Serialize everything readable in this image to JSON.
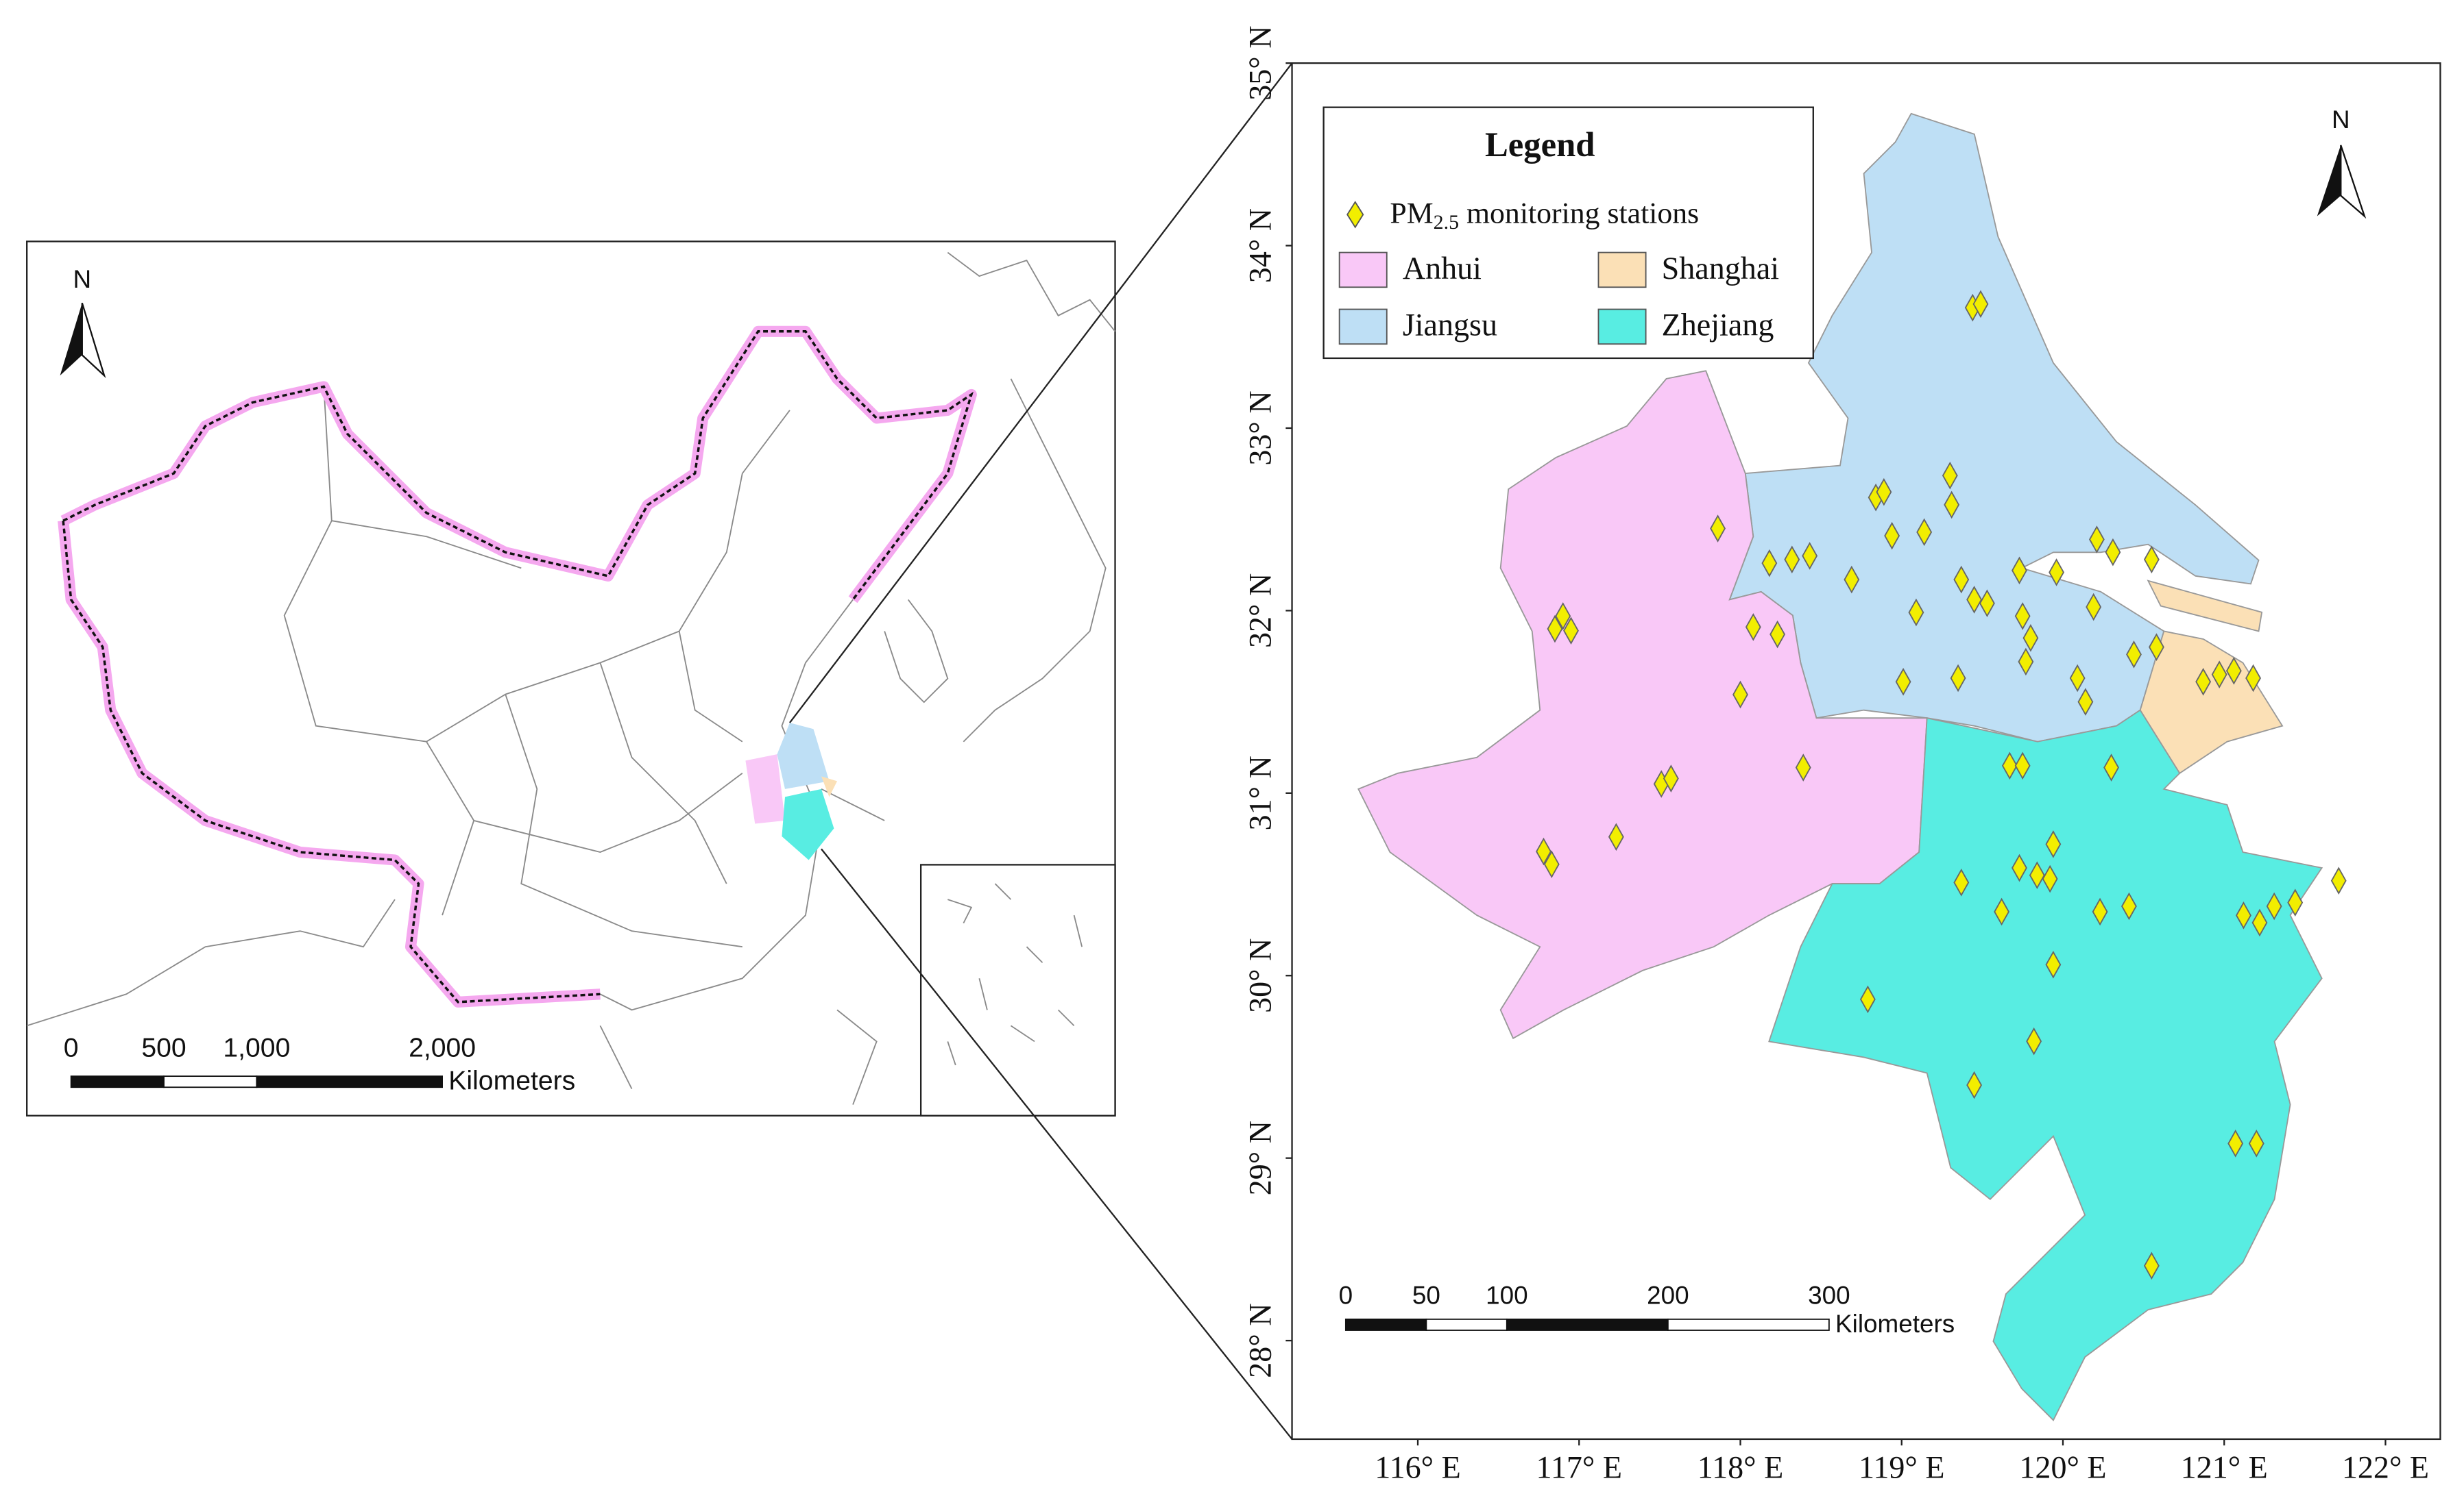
{
  "left_map": {
    "north_label": "N",
    "scale_bar": {
      "ticks": [
        0,
        500,
        {
          "value": 1000,
          "label": "1,000"
        },
        {
          "value": 2000,
          "label": "2,000"
        }
      ],
      "unit": "Kilometers"
    }
  },
  "right_map": {
    "north_label": "N",
    "legend": {
      "title": "Legend",
      "stations": {
        "prefix": "PM",
        "subscript": "2.5",
        "suffix": " monitoring stations"
      },
      "provinces": [
        {
          "name": "Anhui",
          "color": "#f9c8f7"
        },
        {
          "name": "Shanghai",
          "color": "#fbe0b6"
        },
        {
          "name": "Jiangsu",
          "color": "#bedff5"
        },
        {
          "name": "Zhejiang",
          "color": "#58ede2"
        }
      ]
    },
    "xlim": [
      115.22,
      122.34
    ],
    "ylim": [
      27.46,
      35.0
    ],
    "xticks": [
      {
        "value": 116,
        "label": "116° E"
      },
      {
        "value": 117,
        "label": "117° E"
      },
      {
        "value": 118,
        "label": "118° E"
      },
      {
        "value": 119,
        "label": "119° E"
      },
      {
        "value": 120,
        "label": "120° E"
      },
      {
        "value": 121,
        "label": "121° E"
      },
      {
        "value": 122,
        "label": "122° E"
      }
    ],
    "yticks": [
      {
        "value": 28,
        "label": "28° N"
      },
      {
        "value": 29,
        "label": "29° N"
      },
      {
        "value": 30,
        "label": "30° N"
      },
      {
        "value": 31,
        "label": "31° N"
      },
      {
        "value": 32,
        "label": "32° N"
      },
      {
        "value": 33,
        "label": "33° N"
      },
      {
        "value": 34,
        "label": "34° N"
      },
      {
        "value": 35,
        "label": "35° N"
      }
    ],
    "scale_bar": {
      "ticks": [
        0,
        50,
        100,
        200,
        300
      ],
      "unit": "Kilometers"
    },
    "stations": {
      "color": "#f2ee00",
      "lon": [
        119.44,
        119.49,
        118.84,
        118.89,
        119.3,
        119.31,
        118.94,
        119.14,
        117.86,
        118.18,
        118.32,
        118.43,
        118.69,
        119.37,
        119.45,
        119.53,
        119.73,
        119.96,
        120.21,
        120.31,
        120.55,
        119.09,
        119.75,
        119.8,
        120.19,
        119.77,
        119.01,
        119.35,
        120.09,
        120.14,
        120.44,
        120.58,
        116.9,
        116.85,
        116.95,
        118.08,
        118.23,
        118.0,
        117.51,
        117.57,
        118.39,
        117.23,
        116.78,
        116.83,
        119.67,
        119.75,
        120.3,
        120.87,
        120.97,
        121.06,
        121.18,
        119.37,
        119.73,
        119.84,
        119.92,
        119.94,
        119.62,
        120.23,
        120.41,
        121.12,
        121.22,
        121.31,
        121.44,
        121.71,
        119.94,
        118.79,
        119.82,
        119.45,
        121.07,
        121.2,
        120.55
      ],
      "lat": [
        33.66,
        33.68,
        32.62,
        32.65,
        32.74,
        32.58,
        32.41,
        32.43,
        32.45,
        32.26,
        32.28,
        32.3,
        32.17,
        32.17,
        32.06,
        32.04,
        32.22,
        32.21,
        32.39,
        32.32,
        32.28,
        31.99,
        31.97,
        31.85,
        32.02,
        31.72,
        31.61,
        31.63,
        31.63,
        31.5,
        31.76,
        31.8,
        31.97,
        31.9,
        31.89,
        31.91,
        31.87,
        31.54,
        31.05,
        31.08,
        31.14,
        30.76,
        30.68,
        30.61,
        31.15,
        31.15,
        31.14,
        31.61,
        31.65,
        31.67,
        31.63,
        30.51,
        30.59,
        30.55,
        30.53,
        30.72,
        30.35,
        30.35,
        30.38,
        30.33,
        30.29,
        30.38,
        30.4,
        30.52,
        30.06,
        29.87,
        29.64,
        29.4,
        29.08,
        29.08,
        28.41
      ]
    }
  }
}
